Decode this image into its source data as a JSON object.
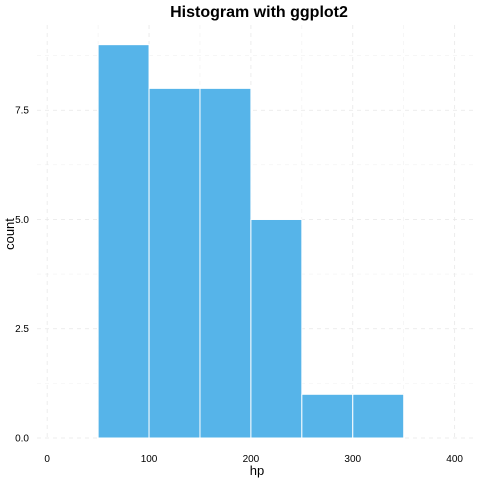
{
  "chart_data": {
    "type": "bar",
    "title": "Histogram with ggplot2",
    "xlabel": "hp",
    "ylabel": "count",
    "bins": [
      {
        "start": 50,
        "end": 100,
        "count": 9
      },
      {
        "start": 100,
        "end": 150,
        "count": 8
      },
      {
        "start": 150,
        "end": 200,
        "count": 8
      },
      {
        "start": 200,
        "end": 250,
        "count": 5
      },
      {
        "start": 250,
        "end": 300,
        "count": 1
      },
      {
        "start": 300,
        "end": 350,
        "count": 1
      }
    ],
    "xlim": [
      -10,
      420
    ],
    "ylim": [
      0,
      9.45
    ],
    "x_ticks": [
      0,
      100,
      200,
      300,
      400
    ],
    "y_ticks": [
      0,
      2.5,
      5,
      7.5
    ],
    "y_tick_labels": [
      "0.0",
      "2.5",
      "5.0",
      "7.5"
    ],
    "x_minor_ticks": [
      50,
      150,
      250,
      350
    ],
    "y_minor_ticks": [
      1.25,
      3.75,
      6.25,
      8.75
    ],
    "grid": true,
    "bar_color": "#56B4E9",
    "bar_outline": "#ffffff"
  }
}
